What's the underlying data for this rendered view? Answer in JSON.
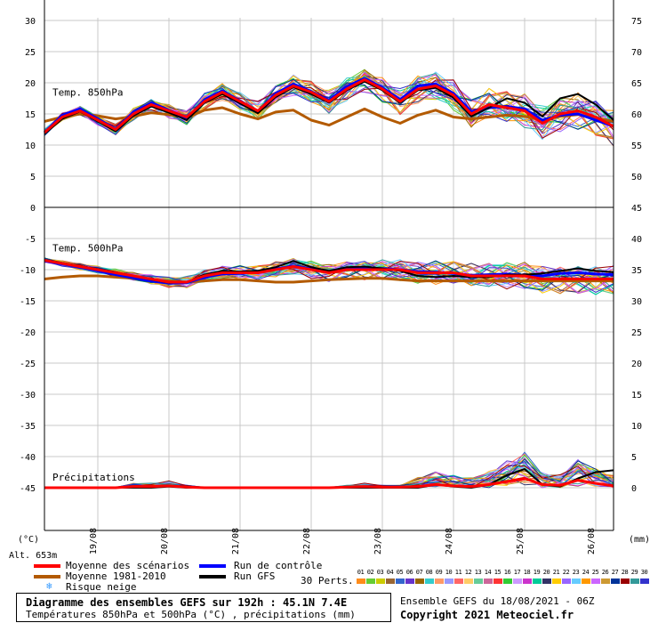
{
  "chart_data": {
    "type": "line",
    "title": "Diagramme des ensembles GEFS sur 192h : 45.1N 7.4E",
    "subtitle": "Températures 850hPa et 500hPa (°C) , précipitations (mm)",
    "run_info": "Ensemble GEFS du 18/08/2021 - 06Z",
    "copyright": "Copyright 2021 Meteociel.fr",
    "altitude": "Alt. 653m",
    "left_unit": "(°C)",
    "right_unit": "(mm)",
    "x_hours_range": [
      0,
      192
    ],
    "x_ticks": [
      {
        "label": "19/08",
        "hour": 18
      },
      {
        "label": "20/08",
        "hour": 42
      },
      {
        "label": "21/08",
        "hour": 66
      },
      {
        "label": "22/08",
        "hour": 90
      },
      {
        "label": "23/08",
        "hour": 114
      },
      {
        "label": "24/08",
        "hour": 138
      },
      {
        "label": "25/08",
        "hour": 162
      },
      {
        "label": "26/08",
        "hour": 186
      }
    ],
    "left_axis": {
      "ylim": [
        -50,
        35
      ],
      "ticks": [
        30,
        25,
        20,
        15,
        10,
        5,
        0,
        -5,
        -10,
        -15,
        -20,
        -25,
        -30,
        -35,
        -40,
        -45
      ]
    },
    "right_axis_ticks": [
      {
        "label": "75",
        "temp": 30
      },
      {
        "label": "70",
        "temp": 25
      },
      {
        "label": "65",
        "temp": 20
      },
      {
        "label": "60",
        "temp": 15
      },
      {
        "label": "55",
        "temp": 10
      },
      {
        "label": "50",
        "temp": 5
      },
      {
        "label": "45",
        "temp": 0
      },
      {
        "label": "40",
        "temp": -5
      },
      {
        "label": "35",
        "temp": -10
      },
      {
        "label": "30",
        "temp": -15
      },
      {
        "label": "25",
        "temp": -20
      },
      {
        "label": "20",
        "temp": -25
      },
      {
        "label": "15",
        "temp": -30
      },
      {
        "label": "10",
        "temp": -35
      },
      {
        "label": "5",
        "temp": -40
      },
      {
        "label": "0",
        "temp": -45
      }
    ],
    "panels": [
      {
        "name": "Temp. 850hPa",
        "label_temp": 18.5,
        "ylim": [
          0,
          35
        ]
      },
      {
        "name": "Temp. 500hPa",
        "label_temp": -6.5,
        "ylim": [
          -50,
          0
        ]
      },
      {
        "name": "Précipitations",
        "label_temp": -43.3,
        "base_temp": -45
      }
    ],
    "x_hours": [
      0,
      6,
      12,
      18,
      24,
      30,
      36,
      42,
      48,
      54,
      60,
      66,
      72,
      78,
      84,
      90,
      96,
      102,
      108,
      114,
      120,
      126,
      132,
      138,
      144,
      150,
      156,
      162,
      168,
      174,
      180,
      186,
      192
    ],
    "series": [
      {
        "key": "t850_mean",
        "name": "Moyenne des scénarios",
        "color": "#ff0000",
        "width": 3,
        "values": [
          12,
          14.5,
          15.5,
          14,
          12.5,
          15,
          16.5,
          15.5,
          14.5,
          17,
          18.5,
          17,
          15.5,
          18,
          19.5,
          18.5,
          17,
          19,
          20.5,
          19,
          17,
          19,
          19.5,
          18,
          15,
          16.5,
          16,
          15.5,
          13.5,
          15,
          15.5,
          14.5,
          13
        ]
      },
      {
        "key": "t850_clim",
        "name": "Moyenne 1981-2010",
        "color": "#b35a00",
        "width": 3,
        "values": [
          13.8,
          14.5,
          15,
          14.7,
          14.2,
          14.6,
          15.2,
          14.9,
          14.4,
          15.6,
          16,
          15,
          14.2,
          15.3,
          15.6,
          14,
          13.2,
          14.5,
          15.8,
          14.5,
          13.5,
          14.8,
          15.6,
          14.5,
          14.2,
          14.5,
          14.8,
          14.6,
          14,
          14.6,
          14.9,
          14.3,
          13.8
        ]
      },
      {
        "key": "t850_control",
        "name": "Run de contrôle",
        "color": "#0000ff",
        "width": 3,
        "values": [
          12,
          14.8,
          15.8,
          14.2,
          12.6,
          15.2,
          16.8,
          15.6,
          14.3,
          17.3,
          18.7,
          17.1,
          15.4,
          18.3,
          19.8,
          18.6,
          17.2,
          19.4,
          20.7,
          19.2,
          17.3,
          19.5,
          19.8,
          18.3,
          15.4,
          16,
          16.2,
          15.8,
          14,
          14.8,
          15,
          14,
          13
        ]
      },
      {
        "key": "t850_gfs",
        "name": "Run GFS",
        "color": "#000000",
        "width": 2,
        "values": [
          11.8,
          14.2,
          15.4,
          13.8,
          12.2,
          14.7,
          16.2,
          15.2,
          14,
          16.8,
          18.2,
          16.7,
          15.1,
          17.7,
          19.3,
          18.2,
          16.8,
          18.8,
          20.2,
          18.8,
          16.8,
          18.8,
          19.2,
          17.6,
          14.6,
          16,
          17.5,
          16.8,
          14.6,
          17.5,
          18.2,
          16.5,
          14
        ]
      },
      {
        "key": "t500_mean",
        "name": "Moyenne des scénarios",
        "color": "#ff0000",
        "width": 3,
        "values": [
          -8.5,
          -9,
          -9.5,
          -10,
          -10.5,
          -11,
          -11.5,
          -12,
          -12,
          -11,
          -10.5,
          -10.5,
          -10.5,
          -10,
          -9.5,
          -10,
          -10.5,
          -10,
          -10,
          -10,
          -10,
          -10.5,
          -10.5,
          -10.5,
          -11,
          -11,
          -11,
          -11,
          -11.5,
          -11.5,
          -11.5,
          -11.5,
          -11.5
        ]
      },
      {
        "key": "t500_clim",
        "name": "Moyenne 1981-2010",
        "color": "#b35a00",
        "width": 3,
        "values": [
          -11.5,
          -11.2,
          -11,
          -11,
          -11.2,
          -11.4,
          -11.6,
          -11.8,
          -12,
          -11.8,
          -11.6,
          -11.6,
          -11.8,
          -12,
          -12,
          -11.8,
          -11.6,
          -11.5,
          -11.4,
          -11.4,
          -11.6,
          -11.8,
          -11.8,
          -11.8,
          -11.8,
          -11.8,
          -11.8,
          -11.8,
          -11.8,
          -11.8,
          -11.8,
          -11.8,
          -11.8
        ]
      },
      {
        "key": "t500_control",
        "name": "Run de contrôle",
        "color": "#0000ff",
        "width": 3,
        "values": [
          -8.6,
          -9.1,
          -9.6,
          -10.2,
          -10.8,
          -11.3,
          -11.8,
          -12.2,
          -12.1,
          -11.2,
          -10.7,
          -10.6,
          -10.4,
          -9.9,
          -9.4,
          -9.9,
          -10.4,
          -9.9,
          -9.8,
          -9.8,
          -10,
          -10.3,
          -10.4,
          -10.6,
          -10.9,
          -10.8,
          -10.7,
          -10.9,
          -11,
          -10.6,
          -10.5,
          -10.7,
          -10.8
        ]
      },
      {
        "key": "t500_gfs",
        "name": "Run GFS",
        "color": "#000000",
        "width": 2,
        "values": [
          -8.4,
          -8.9,
          -9.4,
          -9.9,
          -10.4,
          -11,
          -11.6,
          -12.1,
          -12,
          -10.8,
          -10.2,
          -10.3,
          -10.2,
          -9.6,
          -8.6,
          -9.6,
          -10.2,
          -9.6,
          -9.5,
          -9.8,
          -10.2,
          -11,
          -11.2,
          -11,
          -11.2,
          -11.2,
          -10.8,
          -10.8,
          -10.6,
          -10.2,
          -9.8,
          -10.2,
          -10.4
        ]
      },
      {
        "key": "precip_mean",
        "name": "Moyenne des scénarios",
        "color": "#ff0000",
        "width": 3,
        "scale": "precip",
        "values": [
          0,
          0,
          0,
          0,
          0,
          0.2,
          0.2,
          0.3,
          0.1,
          0,
          0,
          0,
          0,
          0,
          0,
          0,
          0,
          0.1,
          0.2,
          0.1,
          0.1,
          0.2,
          0.5,
          0.3,
          0.2,
          0.5,
          1,
          1.5,
          0.5,
          0.4,
          1.2,
          0.7,
          0.3
        ]
      },
      {
        "key": "precip_gfs",
        "name": "Run GFS",
        "color": "#000000",
        "width": 2,
        "scale": "precip",
        "values": [
          0,
          0,
          0,
          0,
          0,
          0,
          0,
          0.2,
          0,
          0,
          0,
          0,
          0,
          0,
          0,
          0,
          0,
          0,
          0,
          0,
          0,
          0,
          0.5,
          0.2,
          0,
          0.5,
          2,
          3,
          0.5,
          0.2,
          1.5,
          2.5,
          2.8
        ]
      }
    ],
    "perturbations": {
      "label": "30 Perts.",
      "codes": [
        "01",
        "02",
        "03",
        "04",
        "05",
        "06",
        "07",
        "08",
        "09",
        "10",
        "11",
        "12",
        "13",
        "14",
        "15",
        "16",
        "17",
        "18",
        "19",
        "20",
        "21",
        "22",
        "23",
        "24",
        "25",
        "26",
        "27",
        "28",
        "29",
        "30"
      ],
      "colors": [
        "#ff8c1a",
        "#66cc33",
        "#cccc00",
        "#996633",
        "#3366cc",
        "#6633cc",
        "#996600",
        "#33cccc",
        "#ff9966",
        "#9999ff",
        "#ff6666",
        "#ffcc66",
        "#66cc99",
        "#cc6699",
        "#ff3333",
        "#33cc33",
        "#cc99ff",
        "#cc33cc",
        "#00cc99",
        "#333366",
        "#ffcc00",
        "#9966ff",
        "#66ccff",
        "#ff9900",
        "#cc66ff",
        "#cc9933",
        "#003399",
        "#990000",
        "#339999",
        "#3333cc"
      ]
    },
    "legend_snow": "Risque neige"
  }
}
